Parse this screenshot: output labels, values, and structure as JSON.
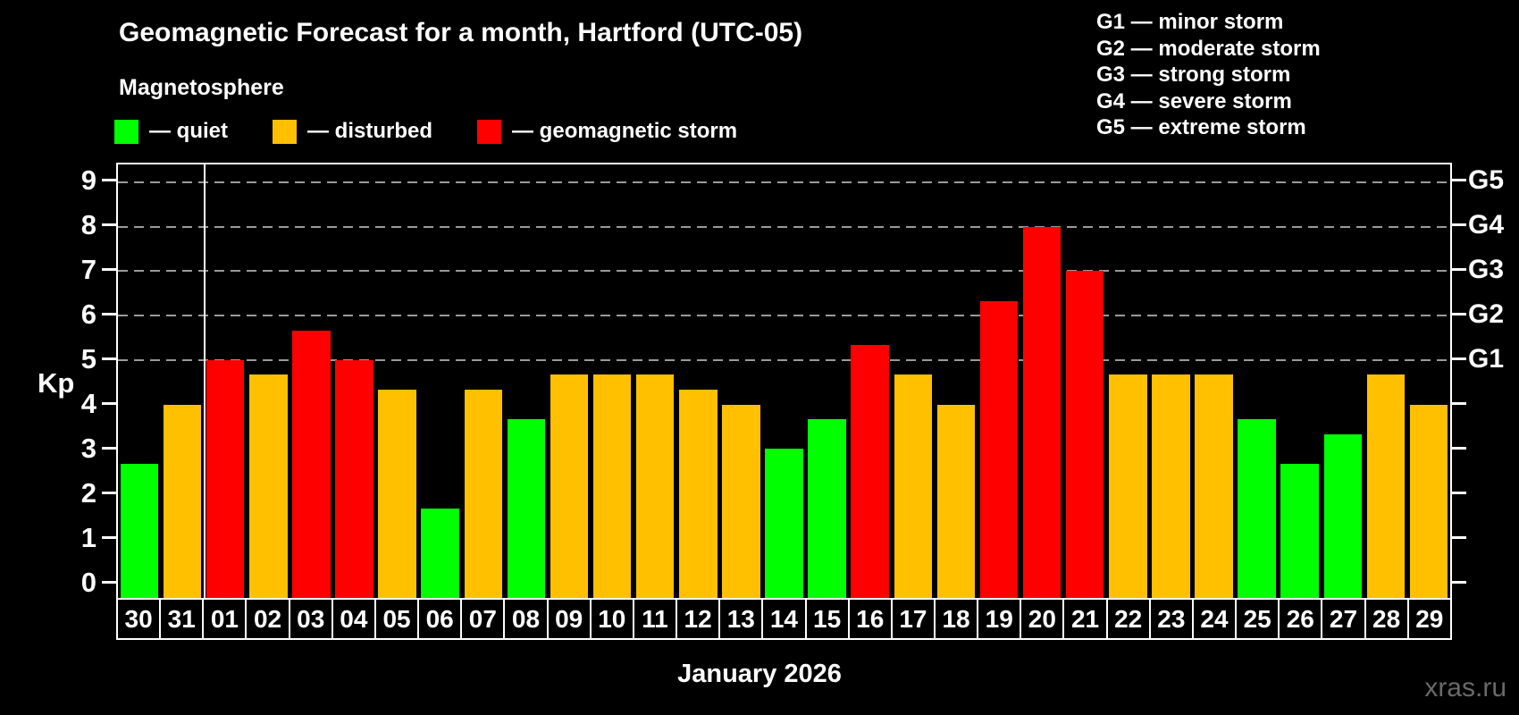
{
  "title": "Geomagnetic Forecast for a month, Hartford (UTC-05)",
  "subtitle": "Magnetosphere",
  "legend": {
    "items": [
      {
        "label": "— quiet",
        "status": "quiet",
        "color": "#00ff00"
      },
      {
        "label": "— disturbed",
        "status": "disturbed",
        "color": "#ffc000"
      },
      {
        "label": "— geomagnetic storm",
        "status": "storm",
        "color": "#ff0000"
      }
    ]
  },
  "g_legend": {
    "lines": [
      "G1 — minor storm",
      "G2 — moderate storm",
      "G3 — strong storm",
      "G4 — severe storm",
      "G5 — extreme storm"
    ]
  },
  "watermark": "xras.ru",
  "chart_data": {
    "type": "bar",
    "title": "Geomagnetic Forecast for a month, Hartford (UTC-05)",
    "ylabel": "Kp",
    "xlabel": "January 2026",
    "ylim": [
      -0.35,
      9.4
    ],
    "yticks": [
      0,
      1,
      2,
      3,
      4,
      5,
      6,
      7,
      8,
      9
    ],
    "gridlines_at": [
      5,
      6,
      7,
      8,
      9
    ],
    "grid": "dashed horizontal lines at Kp 5-9 only",
    "legend_position": "top-left",
    "right_axis": [
      {
        "kp": 5,
        "label": "G1"
      },
      {
        "kp": 6,
        "label": "G2"
      },
      {
        "kp": 7,
        "label": "G3"
      },
      {
        "kp": 8,
        "label": "G4"
      },
      {
        "kp": 9,
        "label": "G5"
      }
    ],
    "status_colors": {
      "quiet": "#00ff00",
      "disturbed": "#ffc000",
      "storm": "#ff0000"
    },
    "month_boundary_after_index": 1,
    "bars": [
      {
        "day": "30",
        "kp": 2.67,
        "status": "quiet"
      },
      {
        "day": "31",
        "kp": 4.0,
        "status": "disturbed"
      },
      {
        "day": "01",
        "kp": 5.0,
        "status": "storm"
      },
      {
        "day": "02",
        "kp": 4.67,
        "status": "disturbed"
      },
      {
        "day": "03",
        "kp": 5.67,
        "status": "storm"
      },
      {
        "day": "04",
        "kp": 5.0,
        "status": "storm"
      },
      {
        "day": "05",
        "kp": 4.33,
        "status": "disturbed"
      },
      {
        "day": "06",
        "kp": 1.67,
        "status": "quiet"
      },
      {
        "day": "07",
        "kp": 4.33,
        "status": "disturbed"
      },
      {
        "day": "08",
        "kp": 3.67,
        "status": "quiet"
      },
      {
        "day": "09",
        "kp": 4.67,
        "status": "disturbed"
      },
      {
        "day": "10",
        "kp": 4.67,
        "status": "disturbed"
      },
      {
        "day": "11",
        "kp": 4.67,
        "status": "disturbed"
      },
      {
        "day": "12",
        "kp": 4.33,
        "status": "disturbed"
      },
      {
        "day": "13",
        "kp": 4.0,
        "status": "disturbed"
      },
      {
        "day": "14",
        "kp": 3.0,
        "status": "quiet"
      },
      {
        "day": "15",
        "kp": 3.67,
        "status": "quiet"
      },
      {
        "day": "16",
        "kp": 5.33,
        "status": "storm"
      },
      {
        "day": "17",
        "kp": 4.67,
        "status": "disturbed"
      },
      {
        "day": "18",
        "kp": 4.0,
        "status": "disturbed"
      },
      {
        "day": "19",
        "kp": 6.33,
        "status": "storm"
      },
      {
        "day": "20",
        "kp": 8.0,
        "status": "storm"
      },
      {
        "day": "21",
        "kp": 7.0,
        "status": "storm"
      },
      {
        "day": "22",
        "kp": 4.67,
        "status": "disturbed"
      },
      {
        "day": "23",
        "kp": 4.67,
        "status": "disturbed"
      },
      {
        "day": "24",
        "kp": 4.67,
        "status": "disturbed"
      },
      {
        "day": "25",
        "kp": 3.67,
        "status": "quiet"
      },
      {
        "day": "26",
        "kp": 2.67,
        "status": "quiet"
      },
      {
        "day": "27",
        "kp": 3.33,
        "status": "quiet"
      },
      {
        "day": "28",
        "kp": 4.67,
        "status": "disturbed"
      },
      {
        "day": "29",
        "kp": 4.0,
        "status": "disturbed"
      }
    ]
  }
}
